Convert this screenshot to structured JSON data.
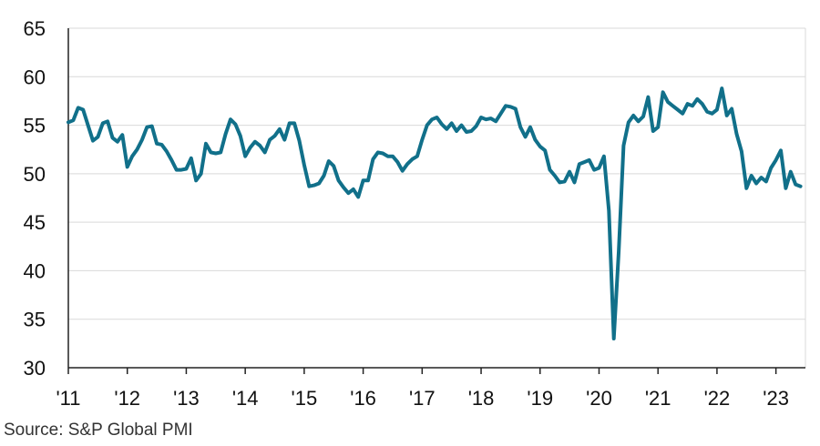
{
  "chart_data": {
    "type": "line",
    "title": "",
    "xlabel": "",
    "ylabel": "",
    "ylim": [
      30,
      65
    ],
    "yticks": [
      30,
      35,
      40,
      45,
      50,
      55,
      60,
      65
    ],
    "xlim": [
      2011.0,
      2023.5
    ],
    "xticks": [
      {
        "value": 2011,
        "label": "'11"
      },
      {
        "value": 2012,
        "label": "'12"
      },
      {
        "value": 2013,
        "label": "'13"
      },
      {
        "value": 2014,
        "label": "'14"
      },
      {
        "value": 2015,
        "label": "'15"
      },
      {
        "value": 2016,
        "label": "'16"
      },
      {
        "value": 2017,
        "label": "'17"
      },
      {
        "value": 2018,
        "label": "'18"
      },
      {
        "value": 2019,
        "label": "'19"
      },
      {
        "value": 2020,
        "label": "'20"
      },
      {
        "value": 2021,
        "label": "'21"
      },
      {
        "value": 2022,
        "label": "'22"
      },
      {
        "value": 2023,
        "label": "'23"
      }
    ],
    "grid": true,
    "line_color": "#11708a",
    "series": [
      {
        "name": "S&P Global PMI",
        "start": "2011-01",
        "frequency": "monthly",
        "values": [
          55.3,
          55.5,
          56.8,
          56.6,
          55.0,
          53.4,
          53.8,
          55.2,
          55.4,
          53.7,
          53.3,
          54.0,
          50.7,
          51.8,
          52.5,
          53.5,
          54.8,
          54.9,
          53.1,
          53.0,
          52.3,
          51.4,
          50.4,
          50.4,
          50.5,
          51.6,
          49.3,
          50.0,
          53.1,
          52.2,
          52.1,
          52.2,
          54.1,
          55.6,
          55.1,
          53.9,
          51.8,
          52.7,
          53.3,
          52.9,
          52.2,
          53.5,
          53.9,
          54.6,
          53.5,
          55.2,
          55.2,
          53.4,
          50.9,
          48.7,
          48.8,
          49.0,
          49.8,
          51.3,
          50.8,
          49.3,
          48.6,
          48.0,
          48.4,
          47.6,
          49.3,
          49.3,
          51.5,
          52.2,
          52.1,
          51.8,
          51.8,
          51.2,
          50.3,
          51.0,
          51.5,
          51.8,
          53.5,
          55.0,
          55.6,
          55.8,
          55.1,
          54.6,
          55.2,
          54.4,
          55.0,
          54.3,
          54.4,
          54.9,
          55.8,
          55.6,
          55.7,
          55.4,
          56.2,
          57.0,
          56.9,
          56.7,
          54.8,
          53.8,
          54.8,
          53.5,
          52.8,
          52.4,
          50.4,
          49.8,
          49.1,
          49.2,
          50.2,
          49.1,
          51.0,
          51.2,
          51.4,
          50.4,
          50.6,
          51.8,
          46.2,
          33.0,
          42.0,
          52.9,
          55.3,
          56.0,
          55.4,
          55.9,
          57.9,
          54.4,
          54.8,
          58.4,
          57.4,
          57.0,
          56.6,
          56.2,
          57.2,
          57.0,
          57.7,
          57.2,
          56.4,
          56.2,
          56.6,
          58.8,
          56.0,
          56.7,
          54.1,
          52.3,
          48.5,
          49.8,
          49.0,
          49.6,
          49.2,
          50.6,
          51.4,
          52.4,
          48.5,
          50.2,
          48.9,
          48.7
        ]
      }
    ],
    "source": "Source: S&P Global PMI"
  }
}
